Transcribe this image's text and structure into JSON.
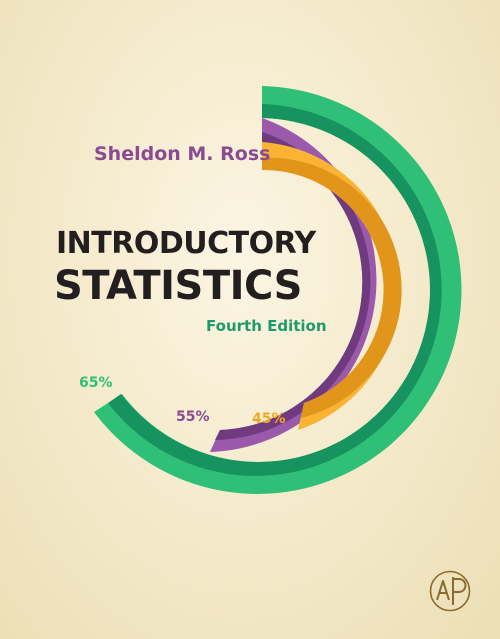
{
  "book": {
    "author": "Sheldon M. Ross",
    "title_line_1": "INTRODUCTORY",
    "title_line_2": "STATISTICS",
    "edition": "Fourth Edition"
  },
  "rings": [
    {
      "label": "65%",
      "value": 0.65,
      "color": "#2fbf77"
    },
    {
      "label": "55%",
      "value": 0.55,
      "color": "#9a59aa"
    },
    {
      "label": "45%",
      "value": 0.45,
      "color": "#fbb334"
    }
  ],
  "colors": {
    "background": "#f5ebcd",
    "title": "#231f20",
    "author": "#8a4b92",
    "edition": "#1e9a6c",
    "ring_dark_green": "#16935e",
    "ring_dark_purple": "#6f3b7e",
    "ring_dark_orange": "#e1951a"
  },
  "publisher_logo": {
    "icon": "elsevier-ap-logo-icon"
  }
}
